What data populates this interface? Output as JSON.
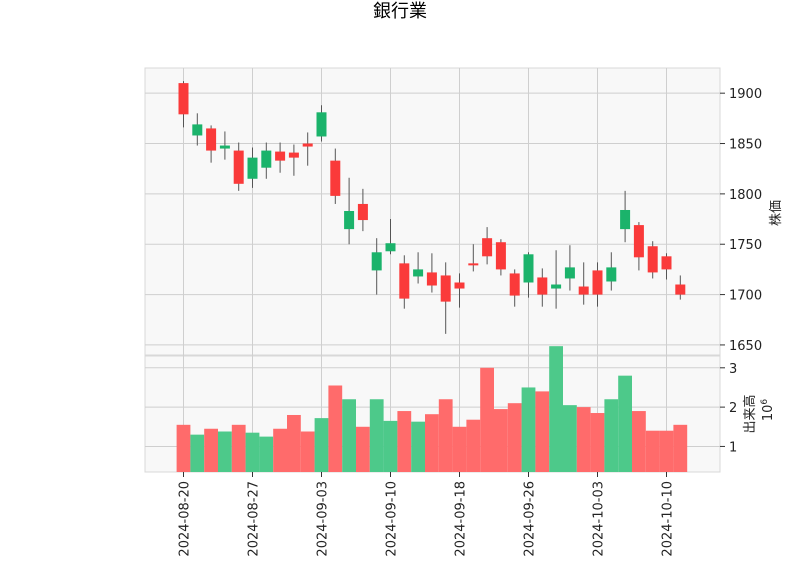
{
  "chart_data": {
    "type": "candlestick",
    "title": "銀行業",
    "price_label": "株価",
    "volume_label": "出来高",
    "volume_exponent_base": "10",
    "volume_exponent": "6",
    "price_ticks": [
      1650,
      1700,
      1750,
      1800,
      1850,
      1900
    ],
    "volume_ticks": [
      1,
      2,
      3
    ],
    "price_ylim": [
      1640,
      1925
    ],
    "volume_ylim": [
      0.35,
      3.3
    ],
    "date_ticks": [
      {
        "index": 0,
        "label": "2024-08-20"
      },
      {
        "index": 5,
        "label": "2024-08-27"
      },
      {
        "index": 10,
        "label": "2024-09-03"
      },
      {
        "index": 15,
        "label": "2024-09-10"
      },
      {
        "index": 20,
        "label": "2024-09-18"
      },
      {
        "index": 25,
        "label": "2024-09-26"
      },
      {
        "index": 30,
        "label": "2024-10-03"
      },
      {
        "index": 35,
        "label": "2024-10-10"
      }
    ],
    "up_color": "#1bb36b",
    "down_color": "#fa3a3a",
    "up_volume_color": "#4dc98a",
    "down_volume_color": "#ff6b6b",
    "grid": true,
    "candles": [
      {
        "date": "2024-08-20",
        "open": 1910,
        "high": 1912,
        "low": 1866,
        "close": 1879,
        "volume": 1.55
      },
      {
        "date": "2024-08-21",
        "open": 1858,
        "high": 1880,
        "low": 1848,
        "close": 1869,
        "volume": 1.3
      },
      {
        "date": "2024-08-22",
        "open": 1865,
        "high": 1868,
        "low": 1831,
        "close": 1843,
        "volume": 1.45
      },
      {
        "date": "2024-08-23",
        "open": 1845,
        "high": 1862,
        "low": 1834,
        "close": 1848,
        "volume": 1.38
      },
      {
        "date": "2024-08-26",
        "open": 1843,
        "high": 1851,
        "low": 1803,
        "close": 1810,
        "volume": 1.55
      },
      {
        "date": "2024-08-27",
        "open": 1815,
        "high": 1846,
        "low": 1806,
        "close": 1836,
        "volume": 1.35
      },
      {
        "date": "2024-08-28",
        "open": 1826,
        "high": 1851,
        "low": 1815,
        "close": 1843,
        "volume": 1.25
      },
      {
        "date": "2024-08-29",
        "open": 1842,
        "high": 1851,
        "low": 1821,
        "close": 1833,
        "volume": 1.45
      },
      {
        "date": "2024-08-30",
        "open": 1841,
        "high": 1849,
        "low": 1818,
        "close": 1836,
        "volume": 1.8
      },
      {
        "date": "2024-09-02",
        "open": 1850,
        "high": 1861,
        "low": 1828,
        "close": 1847,
        "volume": 1.38
      },
      {
        "date": "2024-09-03",
        "open": 1857,
        "high": 1888,
        "low": 1852,
        "close": 1881,
        "volume": 1.72
      },
      {
        "date": "2024-09-04",
        "open": 1833,
        "high": 1845,
        "low": 1790,
        "close": 1798,
        "volume": 2.55
      },
      {
        "date": "2024-09-05",
        "open": 1765,
        "high": 1816,
        "low": 1750,
        "close": 1783,
        "volume": 2.2
      },
      {
        "date": "2024-09-06",
        "open": 1790,
        "high": 1805,
        "low": 1763,
        "close": 1774,
        "volume": 1.5
      },
      {
        "date": "2024-09-09",
        "open": 1724,
        "high": 1756,
        "low": 1700,
        "close": 1742,
        "volume": 2.2
      },
      {
        "date": "2024-09-10",
        "open": 1743,
        "high": 1775,
        "low": 1740,
        "close": 1751,
        "volume": 1.65
      },
      {
        "date": "2024-09-11",
        "open": 1731,
        "high": 1739,
        "low": 1686,
        "close": 1696,
        "volume": 1.9
      },
      {
        "date": "2024-09-12",
        "open": 1718,
        "high": 1742,
        "low": 1711,
        "close": 1725,
        "volume": 1.63
      },
      {
        "date": "2024-09-13",
        "open": 1722,
        "high": 1741,
        "low": 1702,
        "close": 1709,
        "volume": 1.82
      },
      {
        "date": "2024-09-17",
        "open": 1719,
        "high": 1732,
        "low": 1661,
        "close": 1693,
        "volume": 2.2
      },
      {
        "date": "2024-09-18",
        "open": 1712,
        "high": 1721,
        "low": 1687,
        "close": 1706,
        "volume": 1.5
      },
      {
        "date": "2024-09-19",
        "open": 1731,
        "high": 1750,
        "low": 1723,
        "close": 1730,
        "volume": 1.68
      },
      {
        "date": "2024-09-20",
        "open": 1756,
        "high": 1767,
        "low": 1730,
        "close": 1738,
        "volume": 3.0
      },
      {
        "date": "2024-09-24",
        "open": 1752,
        "high": 1755,
        "low": 1719,
        "close": 1725,
        "volume": 1.95
      },
      {
        "date": "2024-09-25",
        "open": 1721,
        "high": 1725,
        "low": 1688,
        "close": 1699,
        "volume": 2.1
      },
      {
        "date": "2024-09-26",
        "open": 1712,
        "high": 1742,
        "low": 1697,
        "close": 1740,
        "volume": 2.5
      },
      {
        "date": "2024-09-27",
        "open": 1717,
        "high": 1726,
        "low": 1688,
        "close": 1700,
        "volume": 2.4
      },
      {
        "date": "2024-09-30",
        "open": 1706,
        "high": 1744,
        "low": 1686,
        "close": 1710,
        "volume": 3.55
      },
      {
        "date": "2024-10-01",
        "open": 1716,
        "high": 1749,
        "low": 1704,
        "close": 1727,
        "volume": 2.05
      },
      {
        "date": "2024-10-02",
        "open": 1708,
        "high": 1732,
        "low": 1690,
        "close": 1700,
        "volume": 2.0
      },
      {
        "date": "2024-10-03",
        "open": 1724,
        "high": 1732,
        "low": 1688,
        "close": 1700,
        "volume": 1.85
      },
      {
        "date": "2024-10-04",
        "open": 1713,
        "high": 1742,
        "low": 1704,
        "close": 1727,
        "volume": 2.2
      },
      {
        "date": "2024-10-07",
        "open": 1765,
        "high": 1803,
        "low": 1752,
        "close": 1784,
        "volume": 2.8
      },
      {
        "date": "2024-10-08",
        "open": 1769,
        "high": 1772,
        "low": 1724,
        "close": 1737,
        "volume": 1.9
      },
      {
        "date": "2024-10-09",
        "open": 1748,
        "high": 1753,
        "low": 1716,
        "close": 1722,
        "volume": 1.4
      },
      {
        "date": "2024-10-10",
        "open": 1738,
        "high": 1741,
        "low": 1715,
        "close": 1725,
        "volume": 1.4
      },
      {
        "date": "2024-10-11",
        "open": 1710,
        "high": 1719,
        "low": 1695,
        "close": 1700,
        "volume": 1.55
      }
    ]
  }
}
